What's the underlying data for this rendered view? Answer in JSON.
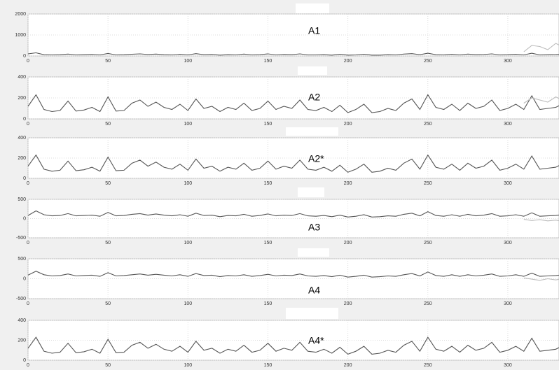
{
  "chart_data": [
    {
      "type": "line",
      "title": "A1",
      "xlim": [
        0,
        332
      ],
      "xticks": [
        0,
        50,
        100,
        150,
        200,
        250,
        300
      ],
      "ylim": [
        0,
        2000
      ],
      "yticks": [
        0,
        1000,
        2000
      ],
      "grid": true,
      "x": [
        0,
        5,
        10,
        15,
        20,
        25,
        30,
        35,
        40,
        45,
        50,
        55,
        60,
        65,
        70,
        75,
        80,
        85,
        90,
        95,
        100,
        105,
        110,
        115,
        120,
        125,
        130,
        135,
        140,
        145,
        150,
        155,
        160,
        165,
        170,
        175,
        180,
        185,
        190,
        195,
        200,
        205,
        210,
        215,
        220,
        225,
        230,
        235,
        240,
        245,
        250,
        255,
        260,
        265,
        270,
        275,
        280,
        285,
        290,
        295,
        300,
        305,
        310,
        315,
        320,
        325,
        330,
        335
      ],
      "series": [
        {
          "color": "#555555",
          "values": [
            100,
            150,
            60,
            50,
            60,
            90,
            50,
            60,
            70,
            50,
            120,
            50,
            60,
            80,
            100,
            70,
            90,
            60,
            50,
            80,
            50,
            110,
            60,
            70,
            40,
            60,
            50,
            90,
            50,
            60,
            100,
            50,
            70,
            60,
            100,
            50,
            50,
            60,
            40,
            80,
            40,
            50,
            80,
            40,
            40,
            60,
            50,
            90,
            110,
            60,
            130,
            60,
            50,
            80,
            50,
            90,
            60,
            70,
            100,
            50,
            60,
            80,
            50,
            130,
            50,
            60,
            70,
            90
          ]
        },
        {
          "color": "#bbbbbb",
          "x": [
            310,
            315,
            320,
            325,
            330,
            335
          ],
          "values": [
            200,
            500,
            450,
            300,
            600,
            400
          ]
        }
      ]
    },
    {
      "type": "line",
      "title": "A2",
      "xlim": [
        0,
        332
      ],
      "xticks": [
        0,
        50,
        100,
        150,
        200,
        250,
        300
      ],
      "ylim": [
        0,
        400
      ],
      "yticks": [
        0,
        200,
        400
      ],
      "grid": true,
      "x": [
        0,
        5,
        10,
        15,
        20,
        25,
        30,
        35,
        40,
        45,
        50,
        55,
        60,
        65,
        70,
        75,
        80,
        85,
        90,
        95,
        100,
        105,
        110,
        115,
        120,
        125,
        130,
        135,
        140,
        145,
        150,
        155,
        160,
        165,
        170,
        175,
        180,
        185,
        190,
        195,
        200,
        205,
        210,
        215,
        220,
        225,
        230,
        235,
        240,
        245,
        250,
        255,
        260,
        265,
        270,
        275,
        280,
        285,
        290,
        295,
        300,
        305,
        310,
        315,
        320,
        325,
        330,
        335
      ],
      "series": [
        {
          "color": "#555555",
          "values": [
            120,
            230,
            90,
            70,
            80,
            170,
            75,
            85,
            110,
            70,
            210,
            75,
            80,
            150,
            180,
            120,
            160,
            110,
            90,
            140,
            80,
            190,
            100,
            120,
            70,
            110,
            90,
            150,
            80,
            100,
            170,
            90,
            120,
            100,
            180,
            90,
            80,
            110,
            70,
            130,
            60,
            90,
            140,
            60,
            70,
            100,
            80,
            150,
            190,
            90,
            230,
            110,
            90,
            140,
            80,
            150,
            100,
            120,
            180,
            80,
            100,
            140,
            90,
            220,
            90,
            100,
            110,
            150
          ]
        },
        {
          "color": "#bbbbbb",
          "x": [
            310,
            315,
            320,
            325,
            330,
            335
          ],
          "values": [
            150,
            200,
            180,
            160,
            210,
            170
          ]
        }
      ]
    },
    {
      "type": "line",
      "title": "A2*",
      "xlim": [
        0,
        332
      ],
      "xticks": [
        0,
        50,
        100,
        150,
        200,
        250,
        300
      ],
      "ylim": [
        0,
        400
      ],
      "yticks": [
        0,
        200,
        400
      ],
      "grid": true,
      "x": [
        0,
        5,
        10,
        15,
        20,
        25,
        30,
        35,
        40,
        45,
        50,
        55,
        60,
        65,
        70,
        75,
        80,
        85,
        90,
        95,
        100,
        105,
        110,
        115,
        120,
        125,
        130,
        135,
        140,
        145,
        150,
        155,
        160,
        165,
        170,
        175,
        180,
        185,
        190,
        195,
        200,
        205,
        210,
        215,
        220,
        225,
        230,
        235,
        240,
        245,
        250,
        255,
        260,
        265,
        270,
        275,
        280,
        285,
        290,
        295,
        300,
        305,
        310,
        315,
        320,
        325,
        330,
        335
      ],
      "series": [
        {
          "color": "#555555",
          "values": [
            120,
            230,
            90,
            70,
            80,
            170,
            75,
            85,
            110,
            70,
            210,
            75,
            80,
            150,
            180,
            120,
            160,
            110,
            90,
            140,
            80,
            190,
            100,
            120,
            70,
            110,
            90,
            150,
            80,
            100,
            170,
            90,
            120,
            100,
            180,
            90,
            80,
            110,
            70,
            130,
            60,
            90,
            140,
            60,
            70,
            100,
            80,
            150,
            190,
            90,
            230,
            110,
            90,
            140,
            80,
            150,
            100,
            120,
            180,
            80,
            100,
            140,
            90,
            220,
            90,
            100,
            110,
            150
          ]
        }
      ]
    },
    {
      "type": "line",
      "title": "A3",
      "xlim": [
        0,
        332
      ],
      "xticks": [
        0,
        50,
        100,
        150,
        200,
        250,
        300
      ],
      "ylim": [
        -500,
        500
      ],
      "yticks": [
        -500,
        0,
        500
      ],
      "grid": true,
      "x": [
        0,
        5,
        10,
        15,
        20,
        25,
        30,
        35,
        40,
        45,
        50,
        55,
        60,
        65,
        70,
        75,
        80,
        85,
        90,
        95,
        100,
        105,
        110,
        115,
        120,
        125,
        130,
        135,
        140,
        145,
        150,
        155,
        160,
        165,
        170,
        175,
        180,
        185,
        190,
        195,
        200,
        205,
        210,
        215,
        220,
        225,
        230,
        235,
        240,
        245,
        250,
        255,
        260,
        265,
        270,
        275,
        280,
        285,
        290,
        295,
        300,
        305,
        310,
        315,
        320,
        325,
        330,
        335
      ],
      "series": [
        {
          "color": "#555555",
          "values": [
            80,
            200,
            100,
            70,
            80,
            130,
            70,
            80,
            90,
            60,
            160,
            70,
            80,
            110,
            130,
            90,
            120,
            90,
            70,
            100,
            60,
            140,
            80,
            90,
            50,
            80,
            70,
            110,
            60,
            80,
            120,
            70,
            90,
            80,
            130,
            70,
            60,
            80,
            50,
            90,
            40,
            60,
            100,
            40,
            50,
            70,
            60,
            110,
            140,
            70,
            180,
            80,
            60,
            100,
            60,
            110,
            70,
            90,
            130,
            60,
            70,
            100,
            60,
            150,
            60,
            70,
            80,
            110
          ]
        },
        {
          "color": "#bbbbbb",
          "x": [
            310,
            315,
            320,
            325,
            330,
            335
          ],
          "values": [
            -20,
            -50,
            -30,
            -60,
            -40,
            -80
          ]
        }
      ]
    },
    {
      "type": "line",
      "title": "A4",
      "xlim": [
        0,
        332
      ],
      "xticks": [
        0,
        50,
        100,
        150,
        200,
        250,
        300
      ],
      "ylim": [
        -500,
        500
      ],
      "yticks": [
        -500,
        0,
        500
      ],
      "grid": true,
      "x": [
        0,
        5,
        10,
        15,
        20,
        25,
        30,
        35,
        40,
        45,
        50,
        55,
        60,
        65,
        70,
        75,
        80,
        85,
        90,
        95,
        100,
        105,
        110,
        115,
        120,
        125,
        130,
        135,
        140,
        145,
        150,
        155,
        160,
        165,
        170,
        175,
        180,
        185,
        190,
        195,
        200,
        205,
        210,
        215,
        220,
        225,
        230,
        235,
        240,
        245,
        250,
        255,
        260,
        265,
        270,
        275,
        280,
        285,
        290,
        295,
        300,
        305,
        310,
        315,
        320,
        325,
        330,
        335
      ],
      "series": [
        {
          "color": "#555555",
          "values": [
            90,
            190,
            100,
            70,
            80,
            120,
            70,
            80,
            90,
            60,
            150,
            70,
            80,
            100,
            120,
            90,
            110,
            90,
            70,
            100,
            60,
            130,
            80,
            90,
            50,
            80,
            70,
            100,
            60,
            80,
            110,
            70,
            90,
            80,
            120,
            70,
            60,
            80,
            50,
            90,
            40,
            60,
            90,
            40,
            50,
            70,
            60,
            100,
            130,
            70,
            170,
            80,
            60,
            100,
            60,
            100,
            70,
            90,
            120,
            60,
            70,
            100,
            60,
            140,
            60,
            70,
            80,
            100
          ]
        },
        {
          "color": "#bbbbbb",
          "x": [
            310,
            315,
            320,
            325,
            330,
            335
          ],
          "values": [
            20,
            -10,
            -40,
            0,
            -30,
            10
          ]
        }
      ]
    },
    {
      "type": "line",
      "title": "A4*",
      "xlim": [
        0,
        332
      ],
      "xticks": [
        0,
        50,
        100,
        150,
        200,
        250,
        300
      ],
      "ylim": [
        0,
        400
      ],
      "yticks": [
        0,
        200,
        400
      ],
      "grid": true,
      "x": [
        0,
        5,
        10,
        15,
        20,
        25,
        30,
        35,
        40,
        45,
        50,
        55,
        60,
        65,
        70,
        75,
        80,
        85,
        90,
        95,
        100,
        105,
        110,
        115,
        120,
        125,
        130,
        135,
        140,
        145,
        150,
        155,
        160,
        165,
        170,
        175,
        180,
        185,
        190,
        195,
        200,
        205,
        210,
        215,
        220,
        225,
        230,
        235,
        240,
        245,
        250,
        255,
        260,
        265,
        270,
        275,
        280,
        285,
        290,
        295,
        300,
        305,
        310,
        315,
        320,
        325,
        330,
        335
      ],
      "series": [
        {
          "color": "#555555",
          "values": [
            120,
            230,
            90,
            70,
            80,
            170,
            75,
            85,
            110,
            70,
            210,
            75,
            80,
            150,
            180,
            120,
            160,
            110,
            90,
            140,
            80,
            190,
            100,
            120,
            70,
            110,
            90,
            150,
            80,
            100,
            170,
            90,
            120,
            100,
            180,
            90,
            80,
            110,
            70,
            130,
            60,
            90,
            140,
            60,
            70,
            100,
            80,
            150,
            190,
            90,
            230,
            110,
            90,
            140,
            80,
            150,
            100,
            120,
            180,
            80,
            100,
            140,
            90,
            220,
            90,
            100,
            110,
            150
          ]
        }
      ]
    }
  ]
}
